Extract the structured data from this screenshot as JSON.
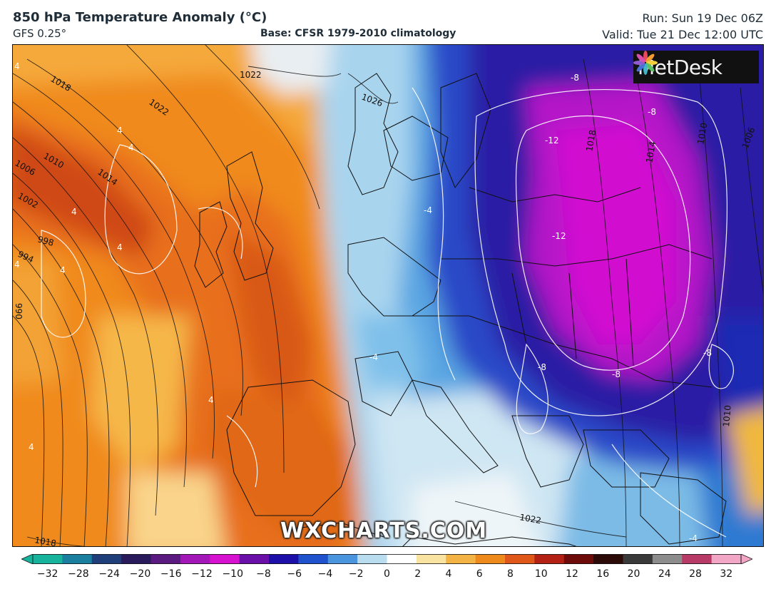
{
  "header": {
    "title": "850 hPa Temperature Anomaly (°C)",
    "model": "GFS 0.25°",
    "base": "Base: CFSR 1979-2010 climatology",
    "run": "Run: Sun 19 Dec 06Z",
    "valid": "Valid: Tue 21 Dec 12:00 UTC"
  },
  "logo": {
    "text": "MetDesk",
    "icon": "metdesk-flower-icon"
  },
  "watermark": "WXCHARTS.COM",
  "isobar_labels": [
    "1022",
    "1018",
    "1026",
    "1022",
    "1010",
    "1014",
    "1006",
    "1002",
    "998",
    "994",
    "990",
    "1018",
    "1014",
    "1010",
    "1006",
    "1022",
    "1018",
    "1010"
  ],
  "anomaly_labels": [
    "-8",
    "-8",
    "-12",
    "-12",
    "-4",
    "-8",
    "-8",
    "-8",
    "4",
    "4",
    "4",
    "4",
    "4",
    "4",
    "4",
    "4",
    "4",
    "-4",
    "-4"
  ],
  "colorbar": {
    "ticks": [
      "−32",
      "−28",
      "−24",
      "−20",
      "−16",
      "−12",
      "−10",
      "−8",
      "−6",
      "−4",
      "−2",
      "0",
      "2",
      "4",
      "6",
      "8",
      "10",
      "12",
      "16",
      "20",
      "24",
      "28",
      "32"
    ],
    "colors": [
      "#18b39c",
      "#1b7fa0",
      "#203f7a",
      "#2a1b5c",
      "#5a1a80",
      "#a316b8",
      "#d612d0",
      "#6a0fa8",
      "#1d10a8",
      "#1f52cc",
      "#4a95de",
      "#b9dcef",
      "#ffffff",
      "#f9e3a0",
      "#f3b445",
      "#ee8a1c",
      "#e0571a",
      "#b32114",
      "#6d0c0a",
      "#2b0a08",
      "#3a3a3a",
      "#8c8c8c",
      "#b83a66",
      "#f2a6c6"
    ]
  },
  "palette": {
    "warm_strong": "#c8420d",
    "warm": "#ef7f17",
    "warm_light": "#f6b13c",
    "pale": "#eef4f6",
    "cool": "#4da2dd",
    "cold": "#1f47c6",
    "very_cold": "#2418a0",
    "extreme": "#cc10cc"
  }
}
